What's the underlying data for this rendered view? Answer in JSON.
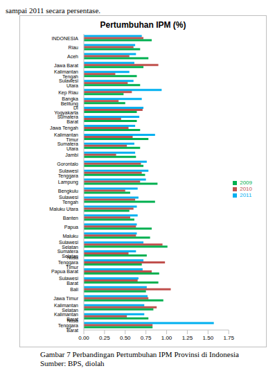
{
  "chart_data": {
    "type": "bar",
    "orientation": "horizontal",
    "title": "Pertumbuhan IPM (%)",
    "annotations": [
      "sampai 2011 secara persentase.",
      "Gambar 7 Perbandingan Pertumbuhan IPM Provinsi di Indonesia",
      "Sumber: BPS, diolah"
    ],
    "categories": [
      "INDONESIA",
      "Riau",
      "Aceh",
      "Jawa Barat",
      "Kalimantan Tengah",
      "Sulawesi Utara",
      "Kep Riau",
      "Bangka Belitung",
      "DI Yogyakarta",
      "Sumatera Barat",
      "Jawa Tengah",
      "Kalimantan Timur",
      "Sumatera Utara",
      "Jambi",
      "Gorontalo",
      "Sulawesi Tenggara",
      "Lampung",
      "Bengkulu",
      "Sulawesi Tengah",
      "Maluku Utara",
      "Banten",
      "Papua",
      "Maluku",
      "Sulawesi Selatan",
      "Sumatera Selatan",
      "Nusa Tenggara Timur",
      "Papua Barat",
      "Sulawesi Barat",
      "Bali",
      "Jawa Timur",
      "Kalimantan Selatan",
      "Kalimantan Barat",
      "Nusa Tenggara Barat"
    ],
    "series": [
      {
        "name": "2011",
        "color": "#00b0f0",
        "values": [
          0.7,
          0.62,
          0.63,
          0.61,
          0.55,
          0.6,
          0.94,
          0.7,
          0.72,
          0.67,
          0.62,
          0.86,
          0.61,
          0.62,
          0.76,
          0.78,
          0.75,
          0.65,
          0.66,
          0.64,
          0.65,
          0.64,
          0.64,
          0.72,
          0.63,
          0.72,
          0.71,
          0.66,
          0.76,
          0.77,
          0.73,
          0.73,
          1.57
        ]
      },
      {
        "name": "2010",
        "color": "#c0504d",
        "values": [
          0.72,
          0.6,
          0.55,
          0.9,
          0.38,
          0.53,
          0.58,
          0.42,
          0.71,
          0.45,
          0.54,
          0.59,
          0.52,
          0.39,
          0.69,
          0.7,
          0.68,
          0.5,
          0.62,
          0.6,
          0.56,
          0.63,
          0.63,
          0.95,
          0.54,
          0.98,
          0.82,
          0.65,
          1.05,
          0.78,
          0.88,
          0.52,
          0.83
        ]
      },
      {
        "name": "2009",
        "color": "#00b050",
        "values": [
          0.82,
          0.68,
          0.78,
          0.72,
          0.64,
          0.68,
          0.48,
          0.5,
          0.64,
          0.64,
          0.68,
          0.78,
          0.68,
          0.63,
          0.72,
          0.74,
          0.89,
          0.56,
          0.86,
          0.55,
          0.61,
          0.82,
          0.8,
          1.01,
          0.76,
          0.7,
          0.91,
          0.9,
          0.75,
          0.96,
          0.84,
          0.78,
          0.83
        ]
      }
    ],
    "xlim": [
      0,
      1.75
    ],
    "xticks": [
      {
        "value": 0,
        "label": "0.00"
      },
      {
        "value": 0.25,
        "label": "0.25"
      },
      {
        "value": 0.5,
        "label": "0.50"
      },
      {
        "value": 0.75,
        "label": "0.75"
      },
      {
        "value": 1,
        "label": "1.00"
      },
      {
        "value": 1.25,
        "label": "1.25"
      },
      {
        "value": 1.5,
        "label": "1.50"
      },
      {
        "value": 1.75,
        "label": "1.75"
      }
    ],
    "grid": false,
    "legend": "right"
  }
}
